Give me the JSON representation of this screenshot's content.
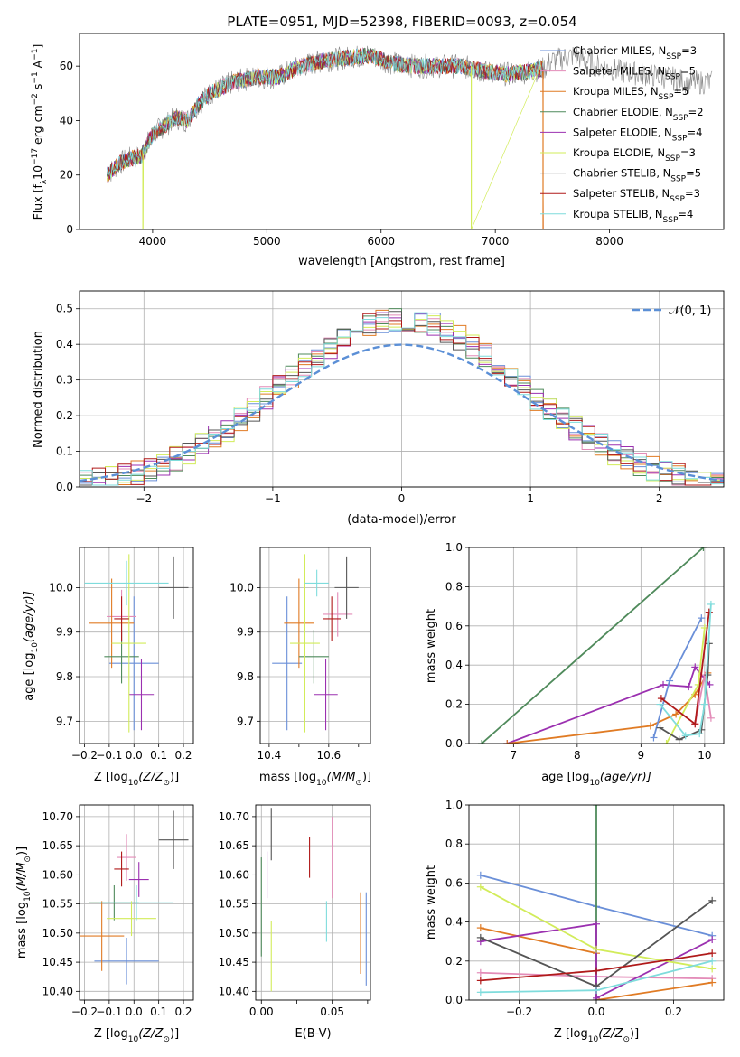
{
  "figure_title": "PLATE=0951, MJD=52398, FIBERID=0093, z=0.054",
  "colors": {
    "chabrier_miles": "#6a8fd8",
    "salpeter_miles": "#e38cb8",
    "kroupa_miles": "#e07b24",
    "chabrier_elodie": "#4f8a5b",
    "salpeter_elodie": "#9b30b0",
    "kroupa_elodie": "#d2ec5a",
    "chabrier_stelib": "#555555",
    "salpeter_stelib": "#b01a1a",
    "kroupa_stelib": "#7fdcdc",
    "data_grey": "#888888",
    "grid": "#b0b0b0",
    "normal": "#5b8fd6"
  },
  "legend_spectrum": [
    {
      "key": "chabrier_miles",
      "text": "Chabrier MILES, N",
      "n": "3"
    },
    {
      "key": "salpeter_miles",
      "text": "Salpeter MILES, N",
      "n": "5"
    },
    {
      "key": "kroupa_miles",
      "text": "Kroupa MILES, N",
      "n": "5"
    },
    {
      "key": "chabrier_elodie",
      "text": "Chabrier ELODIE, N",
      "n": "2"
    },
    {
      "key": "salpeter_elodie",
      "text": "Salpeter ELODIE, N",
      "n": "4"
    },
    {
      "key": "kroupa_elodie",
      "text": "Kroupa ELODIE, N",
      "n": "3"
    },
    {
      "key": "chabrier_stelib",
      "text": "Chabrier STELIB, N",
      "n": "5"
    },
    {
      "key": "salpeter_stelib",
      "text": "Salpeter STELIB, N",
      "n": "3"
    },
    {
      "key": "kroupa_stelib",
      "text": "Kroupa STELIB, N",
      "n": "4"
    }
  ],
  "legend_sub": "SSP",
  "chart_data": [
    {
      "id": "spectrum",
      "type": "line",
      "xlabel": "wavelength [Angstrom, rest frame]",
      "ylabel_main": "Flux [f",
      "ylabel_lambda": "λ",
      "ylabel_rest": "10",
      "ylabel_exp": "−17",
      "ylabel_units": " erg cm",
      "ylabel_e2": "−2",
      "ylabel_s": " s",
      "ylabel_e1": "−1",
      "ylabel_A": " A",
      "ylabel_e3": "−1",
      "ylabel_end": "]",
      "xlim": [
        3360,
        9000
      ],
      "ylim": [
        0,
        72
      ],
      "xticks": [
        4000,
        5000,
        6000,
        7000,
        8000
      ],
      "yticks": [
        0,
        20,
        40,
        60
      ],
      "x_start": 3600,
      "x_end": 7420,
      "continuum": [
        [
          3600,
          20
        ],
        [
          3700,
          24
        ],
        [
          3800,
          26
        ],
        [
          3900,
          27
        ],
        [
          4000,
          35
        ],
        [
          4100,
          38
        ],
        [
          4200,
          41
        ],
        [
          4300,
          40
        ],
        [
          4400,
          46
        ],
        [
          4500,
          50
        ],
        [
          4700,
          54
        ],
        [
          4900,
          56
        ],
        [
          5100,
          56
        ],
        [
          5300,
          60
        ],
        [
          5500,
          62
        ],
        [
          5700,
          63
        ],
        [
          5900,
          64
        ],
        [
          6100,
          61
        ],
        [
          6300,
          60
        ],
        [
          6500,
          60
        ],
        [
          6700,
          60
        ],
        [
          6900,
          58
        ],
        [
          7100,
          57
        ],
        [
          7300,
          58
        ],
        [
          7420,
          59
        ]
      ],
      "grey_continuum": [
        [
          7420,
          59
        ],
        [
          7500,
          62
        ],
        [
          7700,
          64
        ],
        [
          7900,
          60
        ],
        [
          8100,
          58
        ],
        [
          8300,
          57
        ],
        [
          8500,
          56
        ],
        [
          8700,
          54
        ],
        [
          8900,
          54
        ]
      ]
    },
    {
      "id": "histogram",
      "type": "area",
      "xlabel": "(data-model)/error",
      "ylabel": "Normed distribution",
      "xlim": [
        -2.5,
        2.5
      ],
      "ylim": [
        0,
        0.55
      ],
      "xticks": [
        -2,
        -1,
        0,
        1,
        2
      ],
      "yticks": [
        0.0,
        0.1,
        0.2,
        0.3,
        0.4,
        0.5
      ],
      "legend": "𝒩(0, 1)",
      "bin_width": 0.1
    },
    {
      "id": "age_vs_Z",
      "type": "scatter",
      "xlabel": "Z [log",
      "xlabel_sub": "10",
      "xlabel_rest": "(Z/Z",
      "xlabel_sun": "⊙",
      "xlabel_end": ")]",
      "ylabel": "age  [log",
      "ylabel_sub": "10",
      "ylabel_rest": "(age/yr)]",
      "xlim": [
        -0.22,
        0.24
      ],
      "ylim": [
        9.65,
        10.09
      ],
      "xticks": [
        -0.2,
        -0.1,
        0.0,
        0.1,
        0.2
      ],
      "yticks": [
        9.7,
        9.8,
        9.9,
        10.0
      ],
      "points": [
        {
          "key": "chabrier_miles",
          "x": 0.0,
          "y": 9.83,
          "xerr": 0.1,
          "yerr": 0.15
        },
        {
          "key": "salpeter_miles",
          "x": -0.05,
          "y": 9.935,
          "xerr": 0.06,
          "yerr": 0.06
        },
        {
          "key": "kroupa_miles",
          "x": -0.09,
          "y": 9.92,
          "xerr": 0.09,
          "yerr": 0.1
        },
        {
          "key": "chabrier_elodie",
          "x": -0.05,
          "y": 9.845,
          "xerr": 0.07,
          "yerr": 0.06
        },
        {
          "key": "salpeter_elodie",
          "x": 0.03,
          "y": 9.76,
          "xerr": 0.05,
          "yerr": 0.08
        },
        {
          "key": "kroupa_elodie",
          "x": -0.02,
          "y": 9.875,
          "xerr": 0.07,
          "yerr": 0.2
        },
        {
          "key": "chabrier_stelib",
          "x": 0.16,
          "y": 10.0,
          "xerr": 0.06,
          "yerr": 0.07
        },
        {
          "key": "salpeter_stelib",
          "x": -0.05,
          "y": 9.93,
          "xerr": 0.03,
          "yerr": 0.05
        },
        {
          "key": "kroupa_stelib",
          "x": -0.03,
          "y": 10.01,
          "xerr": 0.17,
          "yerr": 0.05
        }
      ]
    },
    {
      "id": "age_vs_mass",
      "type": "scatter",
      "xlabel": "mass [log",
      "xlabel_sub": "10",
      "xlabel_rest": "(M/M",
      "xlabel_sun": "⊙",
      "xlabel_end": ")]",
      "xlim": [
        10.37,
        10.74
      ],
      "ylim": [
        9.65,
        10.09
      ],
      "xticks": [
        10.4,
        10.6
      ],
      "xticks_minor": [
        10.5,
        10.7
      ],
      "yticks": [
        9.7,
        9.8,
        9.9,
        10.0
      ],
      "points": [
        {
          "key": "chabrier_miles",
          "x": 10.46,
          "y": 9.83,
          "xerr": 0.05,
          "yerr": 0.15
        },
        {
          "key": "salpeter_miles",
          "x": 10.63,
          "y": 9.94,
          "xerr": 0.05,
          "yerr": 0.05
        },
        {
          "key": "kroupa_miles",
          "x": 10.5,
          "y": 9.92,
          "xerr": 0.05,
          "yerr": 0.1
        },
        {
          "key": "chabrier_elodie",
          "x": 10.55,
          "y": 9.845,
          "xerr": 0.05,
          "yerr": 0.06
        },
        {
          "key": "salpeter_elodie",
          "x": 10.59,
          "y": 9.76,
          "xerr": 0.04,
          "yerr": 0.08
        },
        {
          "key": "kroupa_elodie",
          "x": 10.52,
          "y": 9.875,
          "xerr": 0.05,
          "yerr": 0.2
        },
        {
          "key": "chabrier_stelib",
          "x": 10.66,
          "y": 10.0,
          "xerr": 0.04,
          "yerr": 0.07
        },
        {
          "key": "salpeter_stelib",
          "x": 10.61,
          "y": 9.93,
          "xerr": 0.03,
          "yerr": 0.05
        },
        {
          "key": "kroupa_stelib",
          "x": 10.56,
          "y": 10.01,
          "xerr": 0.04,
          "yerr": 0.03
        }
      ]
    },
    {
      "id": "weight_vs_age",
      "type": "line",
      "xlabel": "age  [log",
      "xlabel_sub": "10",
      "xlabel_rest": "(age/yr)]",
      "ylabel": "mass weight",
      "xlim": [
        6.3,
        10.3
      ],
      "ylim": [
        0,
        1
      ],
      "xticks": [
        7,
        8,
        9,
        10
      ],
      "yticks": [
        0.0,
        0.2,
        0.4,
        0.6,
        0.8,
        1.0
      ],
      "series": [
        {
          "key": "chabrier_elodie",
          "pts": [
            [
              6.5,
              0.0
            ],
            [
              9.98,
              1.0
            ]
          ]
        },
        {
          "key": "salpeter_elodie",
          "pts": [
            [
              6.9,
              0.0
            ],
            [
              9.35,
              0.3
            ],
            [
              9.75,
              0.29
            ],
            [
              9.85,
              0.39
            ],
            [
              10.08,
              0.3
            ]
          ]
        },
        {
          "key": "kroupa_miles",
          "pts": [
            [
              6.9,
              0.0
            ],
            [
              9.15,
              0.09
            ],
            [
              9.55,
              0.15
            ],
            [
              9.85,
              0.25
            ],
            [
              10.05,
              0.36
            ]
          ]
        },
        {
          "key": "chabrier_miles",
          "pts": [
            [
              9.2,
              0.03
            ],
            [
              9.45,
              0.32
            ],
            [
              9.95,
              0.64
            ]
          ]
        },
        {
          "key": "salpeter_miles",
          "pts": [
            [
              9.85,
              0.1
            ],
            [
              10.0,
              0.35
            ],
            [
              10.1,
              0.13
            ]
          ]
        },
        {
          "key": "kroupa_elodie",
          "pts": [
            [
              9.4,
              0.0
            ],
            [
              9.9,
              0.3
            ],
            [
              10.0,
              0.59
            ]
          ]
        },
        {
          "key": "chabrier_stelib",
          "pts": [
            [
              9.3,
              0.08
            ],
            [
              9.6,
              0.02
            ],
            [
              9.95,
              0.07
            ],
            [
              10.05,
              0.35
            ],
            [
              10.07,
              0.51
            ]
          ]
        },
        {
          "key": "salpeter_stelib",
          "pts": [
            [
              9.32,
              0.23
            ],
            [
              9.85,
              0.1
            ],
            [
              10.07,
              0.67
            ]
          ]
        },
        {
          "key": "kroupa_stelib",
          "pts": [
            [
              9.3,
              0.2
            ],
            [
              9.7,
              0.04
            ],
            [
              9.92,
              0.05
            ],
            [
              10.0,
              0.2
            ],
            [
              10.1,
              0.71
            ]
          ]
        }
      ]
    },
    {
      "id": "mass_vs_Z",
      "type": "scatter",
      "xlabel": "Z [log",
      "xlabel_sub": "10",
      "xlabel_rest": "(Z/Z",
      "xlabel_sun": "⊙",
      "xlabel_end": ")]",
      "ylabel": "mass [log",
      "ylabel_sub": "10",
      "ylabel_rest": "(M/M",
      "ylabel_sun": "⊙",
      "ylabel_end": ")]",
      "xlim": [
        -0.22,
        0.24
      ],
      "ylim": [
        10.385,
        10.72
      ],
      "xticks": [
        -0.2,
        -0.1,
        0.0,
        0.1,
        0.2
      ],
      "yticks": [
        10.4,
        10.45,
        10.5,
        10.55,
        10.6,
        10.65,
        10.7
      ],
      "points": [
        {
          "key": "chabrier_miles",
          "x": -0.03,
          "y": 10.452,
          "xerr": 0.13,
          "yerr": 0.04
        },
        {
          "key": "salpeter_miles",
          "x": -0.03,
          "y": 10.63,
          "xerr": 0.04,
          "yerr": 0.04
        },
        {
          "key": "kroupa_miles",
          "x": -0.13,
          "y": 10.495,
          "xerr": 0.09,
          "yerr": 0.06
        },
        {
          "key": "chabrier_elodie",
          "x": -0.08,
          "y": 10.552,
          "xerr": 0.1,
          "yerr": 0.03
        },
        {
          "key": "salpeter_elodie",
          "x": 0.02,
          "y": 10.592,
          "xerr": 0.04,
          "yerr": 0.03
        },
        {
          "key": "kroupa_elodie",
          "x": -0.01,
          "y": 10.525,
          "xerr": 0.1,
          "yerr": 0.03
        },
        {
          "key": "chabrier_stelib",
          "x": 0.16,
          "y": 10.66,
          "xerr": 0.06,
          "yerr": 0.05
        },
        {
          "key": "salpeter_stelib",
          "x": -0.05,
          "y": 10.61,
          "xerr": 0.03,
          "yerr": 0.03
        },
        {
          "key": "kroupa_stelib",
          "x": 0.01,
          "y": 10.552,
          "xerr": 0.15,
          "yerr": 0.03
        }
      ]
    },
    {
      "id": "mass_vs_ebv",
      "type": "scatter",
      "xlabel": "E(B-V)",
      "xlim": [
        -0.004,
        0.077
      ],
      "ylim": [
        10.385,
        10.72
      ],
      "xticks": [
        0.0,
        0.05
      ],
      "xticks_minor": [
        0.025,
        0.075
      ],
      "yticks": [
        10.4,
        10.45,
        10.5,
        10.55,
        10.6,
        10.65,
        10.7
      ],
      "points": [
        {
          "key": "chabrier_miles",
          "x": 0.074,
          "y": 10.49,
          "yerr": 0.08
        },
        {
          "key": "salpeter_miles",
          "x": 0.05,
          "y": 10.63,
          "yerr": 0.07
        },
        {
          "key": "kroupa_miles",
          "x": 0.07,
          "y": 10.5,
          "yerr": 0.07
        },
        {
          "key": "chabrier_elodie",
          "x": 0.0,
          "y": 10.545,
          "yerr": 0.085
        },
        {
          "key": "salpeter_elodie",
          "x": 0.004,
          "y": 10.6,
          "yerr": 0.04
        },
        {
          "key": "kroupa_elodie",
          "x": 0.007,
          "y": 10.46,
          "yerr": 0.06
        },
        {
          "key": "chabrier_stelib",
          "x": 0.007,
          "y": 10.67,
          "yerr": 0.045
        },
        {
          "key": "salpeter_stelib",
          "x": 0.034,
          "y": 10.63,
          "yerr": 0.035
        },
        {
          "key": "kroupa_stelib",
          "x": 0.046,
          "y": 10.52,
          "yerr": 0.035
        }
      ]
    },
    {
      "id": "weight_vs_Z",
      "type": "line",
      "xlabel": "Z [log",
      "xlabel_sub": "10",
      "xlabel_rest": "(Z/Z",
      "xlabel_sun": "⊙",
      "xlabel_end": ")]",
      "ylabel": "mass weight",
      "xlim": [
        -0.33,
        0.33
      ],
      "ylim": [
        0,
        1
      ],
      "xticks": [
        -0.2,
        0.0,
        0.2
      ],
      "yticks": [
        0.0,
        0.2,
        0.4,
        0.6,
        0.8,
        1.0
      ],
      "series": [
        {
          "key": "chabrier_miles",
          "pts": [
            [
              -0.3,
              0.64
            ],
            [
              0.0,
              0.48
            ],
            [
              0.3,
              0.33
            ]
          ]
        },
        {
          "key": "salpeter_miles",
          "pts": [
            [
              -0.3,
              0.14
            ],
            [
              0.0,
              0.12
            ],
            [
              0.3,
              0.11
            ]
          ]
        },
        {
          "key": "kroupa_miles",
          "pts": [
            [
              -0.3,
              0.37
            ],
            [
              0.0,
              0.24
            ],
            [
              0.0,
              0.0
            ],
            [
              0.3,
              0.09
            ]
          ]
        },
        {
          "key": "chabrier_elodie",
          "pts": [
            [
              0.0,
              0.0
            ],
            [
              0.0,
              1.0
            ]
          ]
        },
        {
          "key": "salpeter_elodie",
          "pts": [
            [
              -0.3,
              0.3
            ],
            [
              0.0,
              0.39
            ],
            [
              0.0,
              0.01
            ],
            [
              0.3,
              0.31
            ]
          ]
        },
        {
          "key": "kroupa_elodie",
          "pts": [
            [
              -0.3,
              0.58
            ],
            [
              0.0,
              0.26
            ],
            [
              0.3,
              0.16
            ]
          ]
        },
        {
          "key": "chabrier_stelib",
          "pts": [
            [
              -0.3,
              0.32
            ],
            [
              0.0,
              0.07
            ],
            [
              0.3,
              0.51
            ]
          ]
        },
        {
          "key": "salpeter_stelib",
          "pts": [
            [
              -0.3,
              0.1
            ],
            [
              0.0,
              0.15
            ],
            [
              0.3,
              0.24
            ]
          ]
        },
        {
          "key": "kroupa_stelib",
          "pts": [
            [
              -0.3,
              0.04
            ],
            [
              0.0,
              0.05
            ],
            [
              0.3,
              0.2
            ]
          ]
        }
      ]
    }
  ]
}
